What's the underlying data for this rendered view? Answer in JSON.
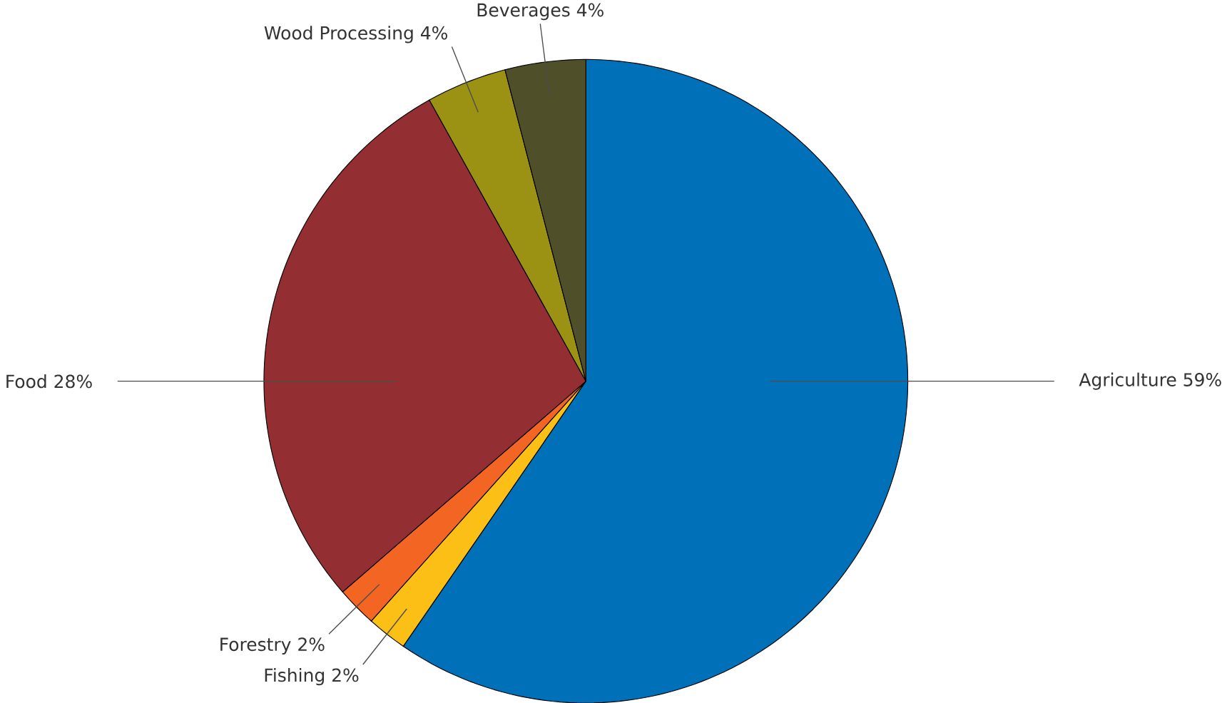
{
  "chart_data": {
    "type": "pie",
    "categories": [
      "Agriculture",
      "Fishing",
      "Forestry",
      "Food",
      "Wood Processing",
      "Beverages"
    ],
    "values": [
      59,
      2,
      2,
      28,
      4,
      4
    ],
    "value_labels": [
      "59%",
      "2%",
      "2%",
      "28%",
      "4%",
      "4%"
    ],
    "colors": [
      "#0070b8",
      "#fbbf16",
      "#f26522",
      "#932f32",
      "#9b9112",
      "#4f4f2a"
    ]
  }
}
